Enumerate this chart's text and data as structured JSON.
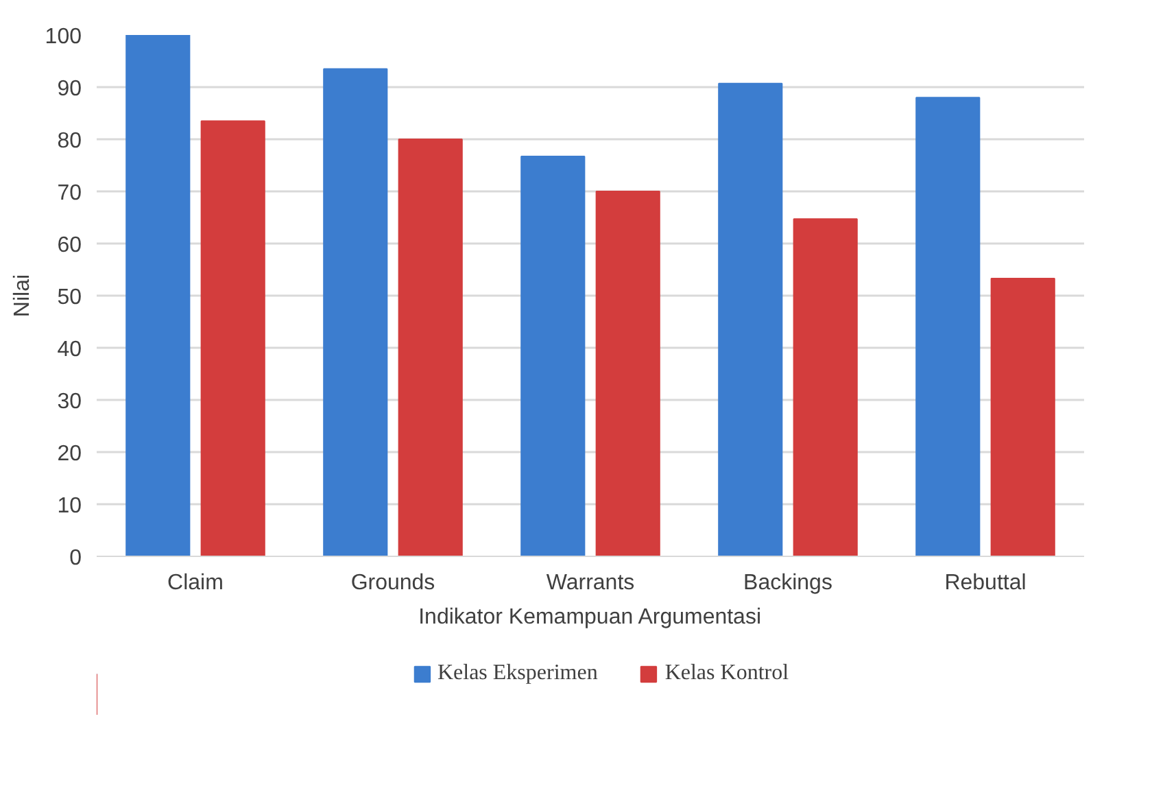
{
  "chart_data": {
    "type": "bar",
    "xlabel": "Indikator Kemampuan Argumentasi",
    "ylabel": "Nilai",
    "categories": [
      "Claim",
      "Grounds",
      "Warrants",
      "Backings",
      "Rebuttal"
    ],
    "series": [
      {
        "name": "Kelas Eksperimen",
        "color": "#3c7dcf",
        "values": [
          100,
          93.5,
          76.7,
          90.7,
          88
        ]
      },
      {
        "name": "Kelas Kontrol",
        "color": "#d33d3d",
        "values": [
          83.5,
          80,
          70,
          64.7,
          53.3
        ]
      }
    ],
    "ylim": [
      0,
      100
    ],
    "yticks": [
      0,
      10,
      20,
      30,
      40,
      50,
      60,
      70,
      80,
      90,
      100
    ],
    "grid": "y",
    "legend": "bottom"
  }
}
